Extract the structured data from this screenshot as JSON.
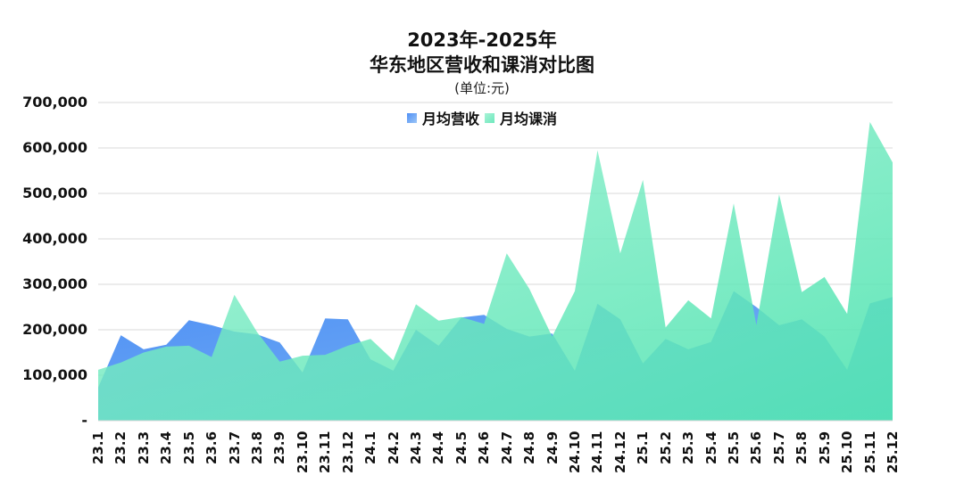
{
  "title": {
    "line1": "2023年-2025年",
    "line2": "华东地区营收和课消对比图",
    "unit": "(单位:元)"
  },
  "legend": [
    {
      "label": "月均营收",
      "color": "#5b9cf5"
    },
    {
      "label": "月均课消",
      "color": "#7eecc4"
    }
  ],
  "y_axis": {
    "ticks": [
      "700,000",
      "600,000",
      "500,000",
      "400,000",
      "300,000",
      "200,000",
      "100,000",
      "-"
    ]
  },
  "chart_data": {
    "type": "area",
    "title": "2023年-2025年 华东地区营收和课消对比图",
    "subtitle": "(单位:元)",
    "xlabel": "",
    "ylabel": "",
    "ylim": [
      0,
      700000
    ],
    "grid": true,
    "legend_position": "top",
    "categories": [
      "23.1",
      "23.2",
      "23.3",
      "23.4",
      "23.5",
      "23.6",
      "23.7",
      "23.8",
      "23.9",
      "23.10",
      "23.11",
      "23.12",
      "24.1",
      "24.2",
      "24.3",
      "24.4",
      "24.5",
      "24.6",
      "24.7",
      "24.8",
      "24.9",
      "24.10",
      "24.11",
      "24.12",
      "25.1",
      "25.2",
      "25.3",
      "25.4",
      "25.5",
      "25.6",
      "25.7",
      "25.8",
      "25.9",
      "25.10",
      "25.11",
      "25.12"
    ],
    "series": [
      {
        "name": "月均营收",
        "color": "#5b9cf5",
        "values": [
          73000,
          188000,
          157000,
          167000,
          221000,
          210000,
          196000,
          190000,
          172000,
          106000,
          225000,
          223000,
          135000,
          110000,
          200000,
          165000,
          227000,
          233000,
          202000,
          185000,
          192000,
          110000,
          257000,
          223000,
          126000,
          180000,
          157000,
          173000,
          285000,
          250000,
          210000,
          223000,
          185000,
          112000,
          258000,
          272000
        ]
      },
      {
        "name": "月均课消",
        "color": "#7eecc4",
        "values": [
          112000,
          128000,
          150000,
          163000,
          165000,
          140000,
          277000,
          195000,
          130000,
          143000,
          145000,
          165000,
          180000,
          133000,
          256000,
          220000,
          228000,
          213000,
          368000,
          290000,
          185000,
          285000,
          595000,
          368000,
          530000,
          205000,
          265000,
          225000,
          478000,
          210000,
          498000,
          283000,
          316000,
          235000,
          657000,
          568000
        ]
      }
    ]
  }
}
